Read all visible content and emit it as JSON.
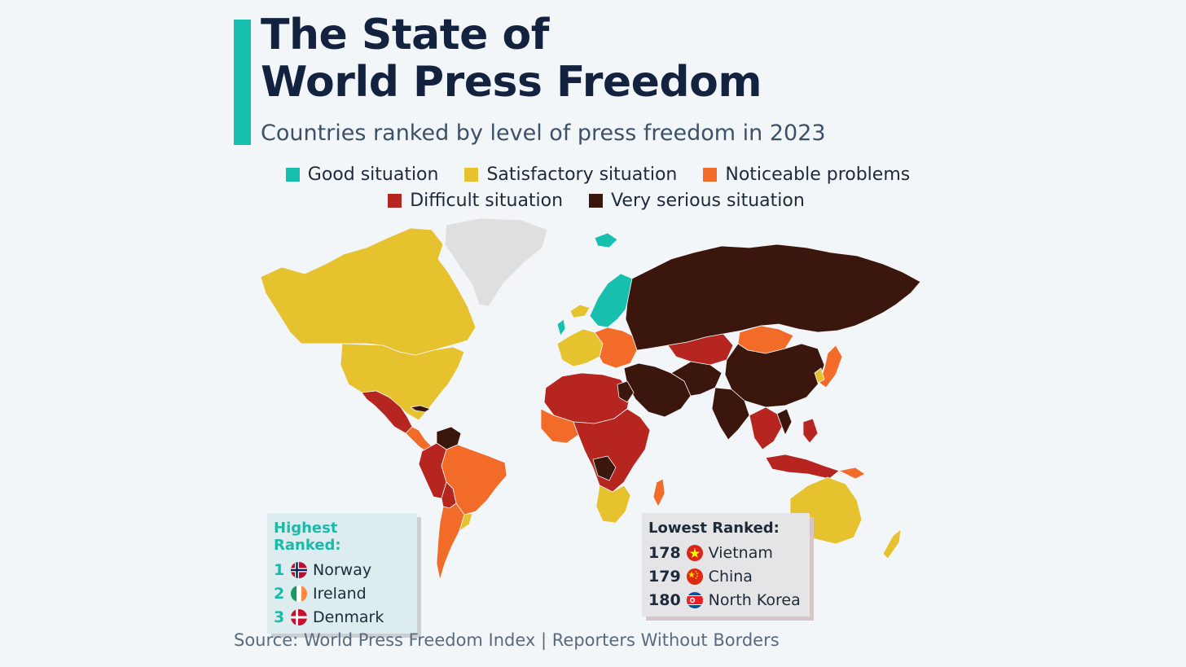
{
  "header": {
    "title_line1": "The State of",
    "title_line2": "World Press Freedom",
    "subtitle": "Countries ranked by level of press freedom in 2023",
    "accent_color": "#16bfae"
  },
  "legend": {
    "items": [
      {
        "label": "Good situation",
        "color": "#16bfae"
      },
      {
        "label": "Satisfactory situation",
        "color": "#e6c22e"
      },
      {
        "label": "Noticeable problems",
        "color": "#f26b28"
      },
      {
        "label": "Difficult situation",
        "color": "#b6251f"
      },
      {
        "label": "Very serious situation",
        "color": "#3b160c"
      }
    ],
    "no_data_color": "#dfdfdf"
  },
  "highest_ranked": {
    "title": "Highest Ranked:",
    "entries": [
      {
        "rank": "1",
        "country": "Norway",
        "flag": "norway-flag-icon"
      },
      {
        "rank": "2",
        "country": "Ireland",
        "flag": "ireland-flag-icon"
      },
      {
        "rank": "3",
        "country": "Denmark",
        "flag": "denmark-flag-icon"
      }
    ]
  },
  "lowest_ranked": {
    "title": "Lowest Ranked:",
    "entries": [
      {
        "rank": "178",
        "country": "Vietnam",
        "flag": "vietnam-flag-icon"
      },
      {
        "rank": "179",
        "country": "China",
        "flag": "china-flag-icon"
      },
      {
        "rank": "180",
        "country": "North Korea",
        "flag": "north-korea-flag-icon"
      }
    ]
  },
  "source": "Source: World Press Freedom Index | Reporters Without Borders"
}
